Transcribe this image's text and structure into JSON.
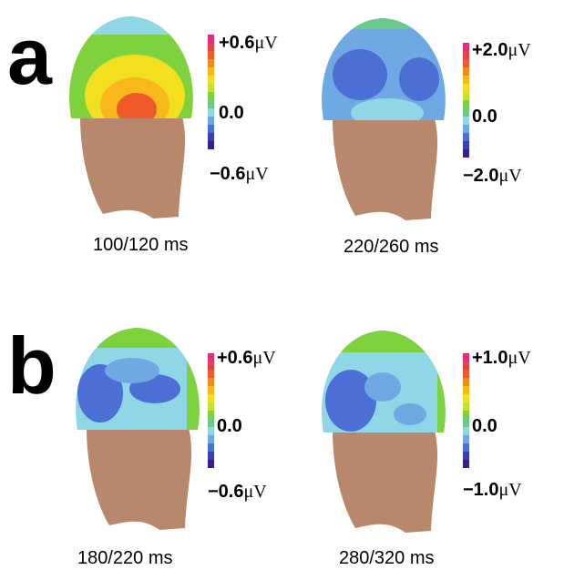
{
  "panels": [
    {
      "label": "a"
    },
    {
      "label": "b"
    }
  ],
  "maps": [
    {
      "caption": "100/120 ms",
      "scale_max": "+0.6",
      "scale_mid": "0.0",
      "scale_min": "−0.6",
      "unit": "μV"
    },
    {
      "caption": "220/260 ms",
      "scale_max": "+2.0",
      "scale_mid": "0.0",
      "scale_min": "−2.0",
      "unit": "μV"
    },
    {
      "caption": "180/220 ms",
      "scale_max": "+0.6",
      "scale_mid": "0.0",
      "scale_min": "−0.6",
      "unit": "μV"
    },
    {
      "caption": "280/320 ms",
      "scale_max": "+1.0",
      "scale_mid": "0.0",
      "scale_min": "−1.0",
      "unit": "μV"
    }
  ],
  "colormap": [
    "#e0307a",
    "#e8404a",
    "#ef5a2a",
    "#f38a1c",
    "#f7b81c",
    "#f2e01e",
    "#c8e034",
    "#7ed23e",
    "#6cc98a",
    "#8fd6e6",
    "#70a8e4",
    "#4c6fd6",
    "#3a3fb8",
    "#3a1e8c"
  ]
}
